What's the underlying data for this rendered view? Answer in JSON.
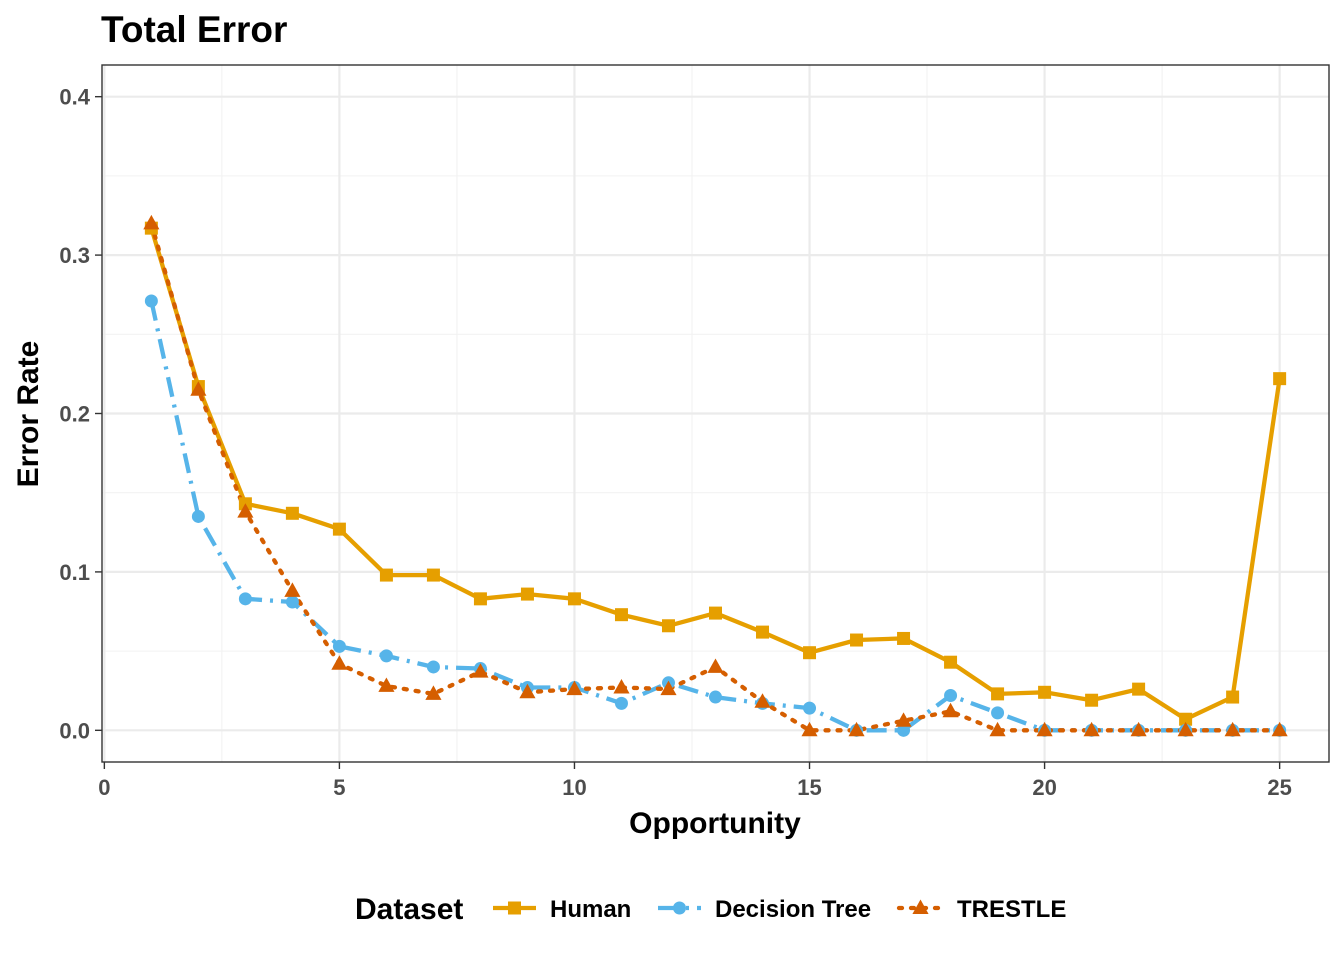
{
  "chart_data": {
    "type": "line",
    "title": "Total Error",
    "xlabel": "Opportunity",
    "ylabel": "Error Rate",
    "xlim": [
      -0.05,
      26.05
    ],
    "ylim": [
      -0.02,
      0.42
    ],
    "x_ticks": [
      0,
      5,
      10,
      15,
      20,
      25
    ],
    "x_tick_labels": [
      "0",
      "5",
      "10",
      "15",
      "20",
      "25"
    ],
    "x_minor_ticks": [
      2.5,
      7.5,
      12.5,
      17.5,
      22.5
    ],
    "y_ticks": [
      0.0,
      0.1,
      0.2,
      0.3,
      0.4
    ],
    "y_tick_labels": [
      "0.0",
      "0.1",
      "0.2",
      "0.3",
      "0.4"
    ],
    "y_minor_ticks": [
      0.05,
      0.15,
      0.25,
      0.35
    ],
    "grid": true,
    "legend_title": "Dataset",
    "legend_position": "bottom",
    "x": [
      1,
      2,
      3,
      4,
      5,
      6,
      7,
      8,
      9,
      10,
      11,
      12,
      13,
      14,
      15,
      16,
      17,
      18,
      19,
      20,
      21,
      22,
      23,
      24,
      25
    ],
    "series": [
      {
        "name": "Human",
        "color": "#E69F00",
        "line_style": "solid",
        "marker": "square",
        "values": [
          0.317,
          0.217,
          0.143,
          0.137,
          0.127,
          0.098,
          0.098,
          0.083,
          0.086,
          0.083,
          0.073,
          0.066,
          0.074,
          0.062,
          0.049,
          0.057,
          0.058,
          0.043,
          0.023,
          0.024,
          0.019,
          0.026,
          0.007,
          0.021,
          0.222
        ]
      },
      {
        "name": "Decision Tree",
        "color": "#56B4E9",
        "line_style": "dashdot",
        "marker": "circle",
        "values": [
          0.271,
          0.135,
          0.083,
          0.081,
          0.053,
          0.047,
          0.04,
          0.039,
          0.027,
          0.027,
          0.017,
          0.03,
          0.021,
          0.017,
          0.014,
          0.0,
          0.0,
          0.022,
          0.011,
          0.0,
          0.0,
          0.0,
          0.0,
          0.0,
          0.0
        ]
      },
      {
        "name": "TRESTLE",
        "color": "#D55E00",
        "line_style": "dotted",
        "marker": "triangle",
        "values": [
          0.32,
          0.215,
          0.138,
          0.088,
          0.042,
          0.028,
          0.023,
          0.037,
          0.024,
          0.026,
          0.027,
          0.026,
          0.04,
          0.018,
          0.0,
          0.0,
          0.006,
          0.012,
          0.0,
          0.0,
          0.0,
          0.0,
          0.0,
          0.0,
          0.0
        ]
      }
    ]
  }
}
